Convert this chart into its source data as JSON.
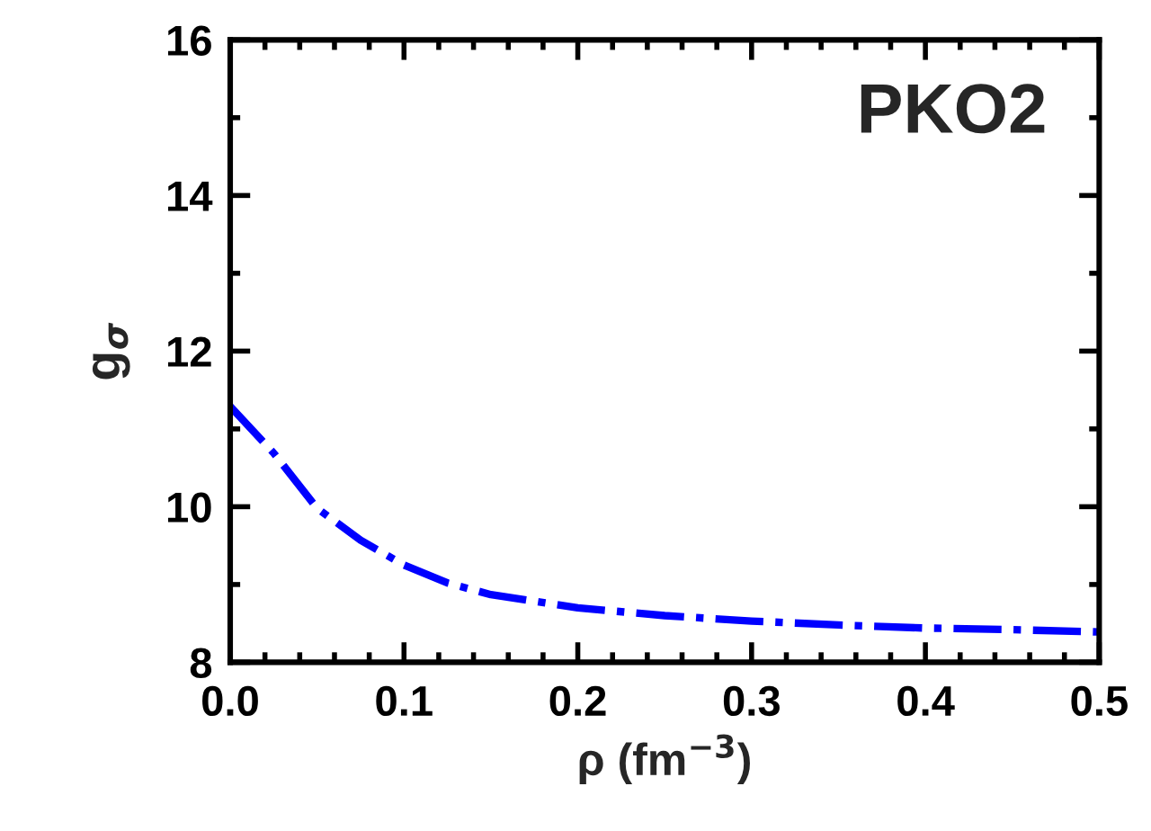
{
  "chart_data": {
    "type": "line",
    "xlabel": "ρ (fm$^{−3}$)",
    "ylabel": "g$_{σ}$",
    "annotations": [
      "PKO2"
    ],
    "x": [
      0,
      0.025,
      0.05,
      0.075,
      0.1,
      0.125,
      0.15,
      0.2,
      0.25,
      0.3,
      0.35,
      0.4,
      0.45,
      0.5
    ],
    "series": [
      {
        "color": "#0000ff",
        "line_style": "dashdot",
        "values": [
          11.29,
          10.69,
          9.98,
          9.57,
          9.25,
          9.02,
          8.87,
          8.7,
          8.6,
          8.53,
          8.48,
          8.44,
          8.42,
          8.39
        ]
      }
    ],
    "xlim": [
      0,
      0.5
    ],
    "ylim": [
      8,
      16
    ],
    "xticks": [
      "0.0",
      0.1,
      0.2,
      0.3,
      0.4,
      0.5
    ],
    "yticks": [
      8,
      10,
      12,
      14,
      16
    ],
    "grid": false,
    "legend": false,
    "marker": "none"
  }
}
